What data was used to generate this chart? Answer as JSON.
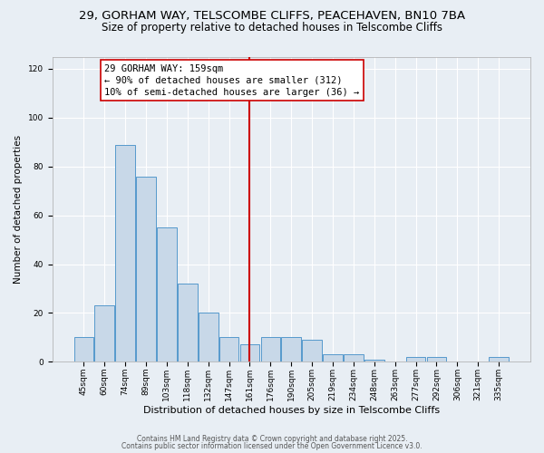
{
  "title_line1": "29, GORHAM WAY, TELSCOMBE CLIFFS, PEACEHAVEN, BN10 7BA",
  "title_line2": "Size of property relative to detached houses in Telscombe Cliffs",
  "xlabel": "Distribution of detached houses by size in Telscombe Cliffs",
  "ylabel": "Number of detached properties",
  "bar_labels": [
    "45sqm",
    "60sqm",
    "74sqm",
    "89sqm",
    "103sqm",
    "118sqm",
    "132sqm",
    "147sqm",
    "161sqm",
    "176sqm",
    "190sqm",
    "205sqm",
    "219sqm",
    "234sqm",
    "248sqm",
    "263sqm",
    "277sqm",
    "292sqm",
    "306sqm",
    "321sqm",
    "335sqm"
  ],
  "bar_values": [
    10,
    23,
    89,
    76,
    55,
    32,
    20,
    10,
    7,
    10,
    10,
    9,
    3,
    3,
    1,
    0,
    2,
    2,
    0,
    0,
    2
  ],
  "bar_color": "#c8d8e8",
  "bar_edge_color": "#5599cc",
  "vline_x_index": 8,
  "vline_color": "#cc0000",
  "annotation_title": "29 GORHAM WAY: 159sqm",
  "annotation_line2": "← 90% of detached houses are smaller (312)",
  "annotation_line3": "10% of semi-detached houses are larger (36) →",
  "annotation_box_color": "#ffffff",
  "annotation_box_edge": "#cc0000",
  "ylim": [
    0,
    125
  ],
  "yticks": [
    0,
    20,
    40,
    60,
    80,
    100,
    120
  ],
  "bg_color": "#e8eef4",
  "footer_line1": "Contains HM Land Registry data © Crown copyright and database right 2025.",
  "footer_line2": "Contains public sector information licensed under the Open Government Licence v3.0.",
  "title_fontsize": 9.5,
  "subtitle_fontsize": 8.5,
  "tick_fontsize": 6.5,
  "xlabel_fontsize": 8,
  "ylabel_fontsize": 7.5,
  "annotation_fontsize": 7.5,
  "footer_fontsize": 5.5
}
